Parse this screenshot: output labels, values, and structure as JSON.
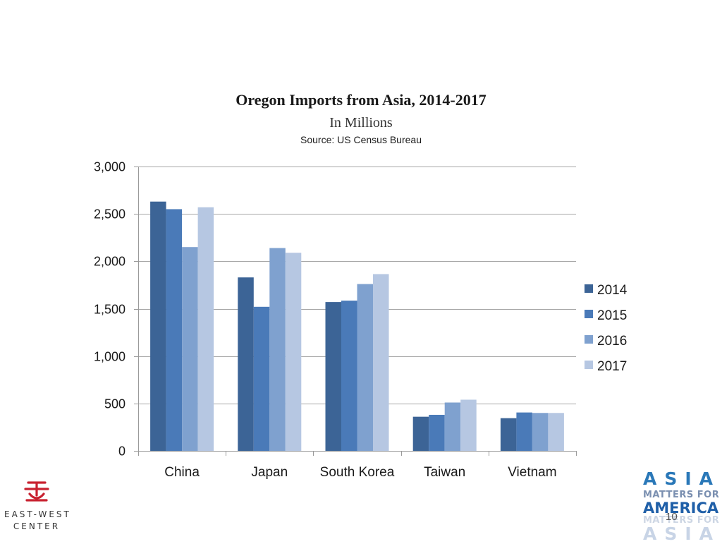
{
  "chart_data": {
    "type": "bar",
    "title": "Oregon Imports from Asia, 2014-2017",
    "subtitle": "In Millions",
    "source": "Source: US Census Bureau",
    "categories": [
      "China",
      "Japan",
      "South Korea",
      "Taiwan",
      "Vietnam"
    ],
    "series": [
      {
        "name": "2014",
        "color": "#3c6496",
        "values": [
          2630,
          1830,
          1570,
          360,
          345
        ]
      },
      {
        "name": "2015",
        "color": "#4a7ab8",
        "values": [
          2550,
          1520,
          1585,
          380,
          405
        ]
      },
      {
        "name": "2016",
        "color": "#7fa1cf",
        "values": [
          2150,
          2140,
          1760,
          510,
          400
        ]
      },
      {
        "name": "2017",
        "color": "#b6c7e2",
        "values": [
          2570,
          2090,
          1865,
          540,
          400
        ]
      }
    ],
    "ylim": [
      0,
      3000
    ],
    "yticks": [
      0,
      500,
      1000,
      1500,
      2000,
      2500,
      3000
    ],
    "ytick_labels": [
      "0",
      "500",
      "1,000",
      "1,500",
      "2,000",
      "2,500",
      "3,000"
    ],
    "grid": true,
    "legend_position": "right"
  },
  "logos": {
    "left": {
      "name": "EAST-WEST CENTER",
      "line1": "EAST-WEST",
      "line2": "CENTER",
      "mark_color": "#c8202f"
    },
    "right": {
      "line1": "ASIA",
      "line2": "MATTERS FOR",
      "line3": "AMERICA",
      "line4": "MATTERS FOR",
      "line5": "ASIA"
    }
  },
  "slide_number": "10"
}
